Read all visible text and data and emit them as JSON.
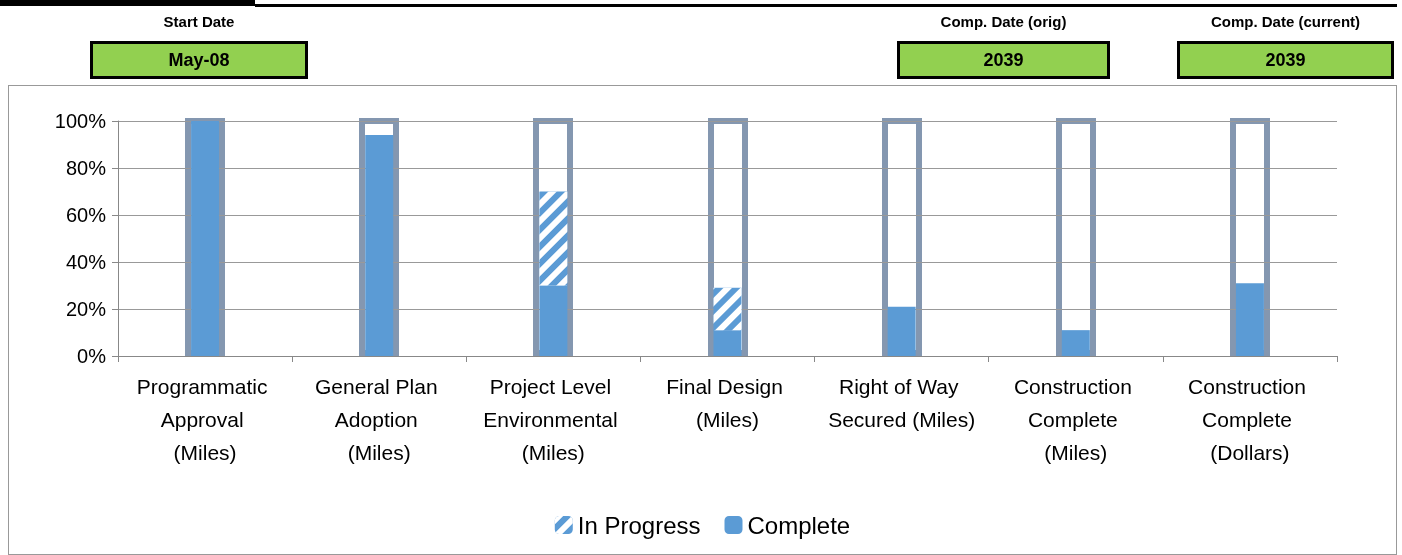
{
  "chart_data": {
    "type": "bar",
    "stacked": true,
    "categories": [
      "Programmatic Approval (Miles)",
      "General Plan Adoption (Miles)",
      "Project Level Environmental (Miles)",
      "Final Design (Miles)",
      "Right of Way Secured (Miles)",
      "Construction Complete (Miles)",
      "Construction Complete (Dollars)"
    ],
    "series": [
      {
        "name": "Complete",
        "color": "#5b9bd5",
        "values": [
          100,
          94,
          30,
          11,
          21,
          11,
          31
        ]
      },
      {
        "name": "In Progress",
        "color": "#5b9bd5",
        "values": [
          0,
          0,
          40,
          18,
          0,
          0,
          0
        ]
      }
    ],
    "ylim": [
      0,
      100
    ],
    "yticks": [
      {
        "value": 0,
        "label": "0%"
      },
      {
        "value": 20,
        "label": "20%"
      },
      {
        "value": 40,
        "label": "40%"
      },
      {
        "value": 60,
        "label": "60%"
      },
      {
        "value": 80,
        "label": "80%"
      },
      {
        "value": 100,
        "label": "100%"
      }
    ],
    "grid": "y",
    "legend": "bottom",
    "annotations": [
      "Start Date",
      "May-08",
      "Comp. Date (orig)",
      "2039",
      "Comp. Date (current)",
      "2039"
    ]
  }
}
